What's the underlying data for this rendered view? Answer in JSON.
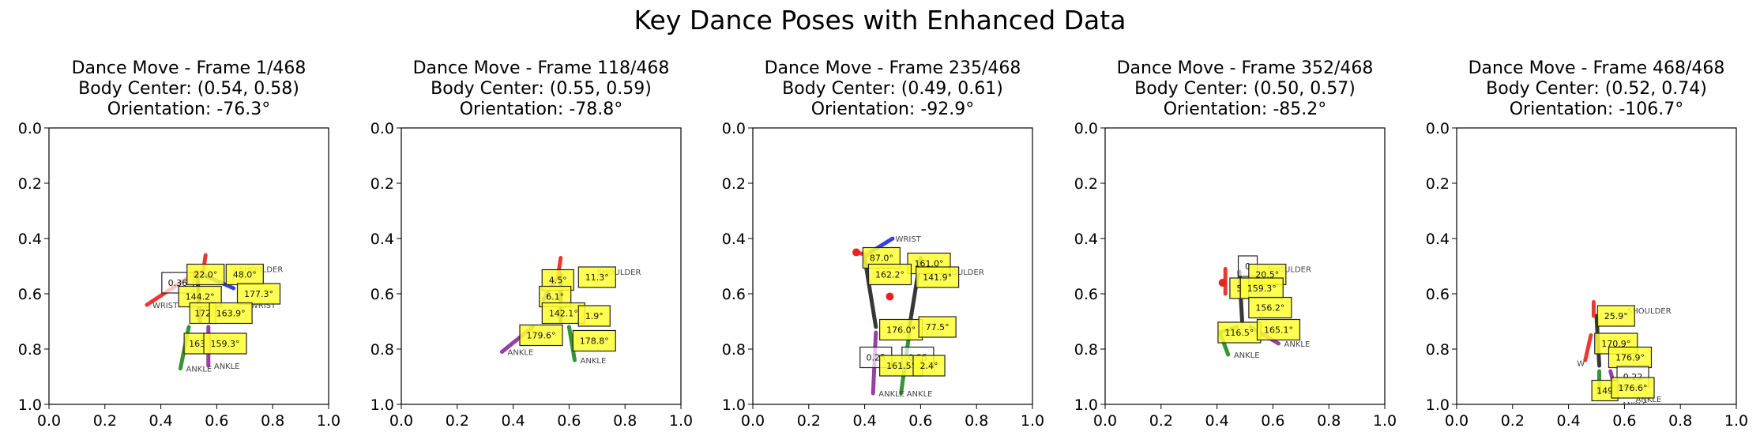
{
  "suptitle": "Key Dance Poses with Enhanced Data",
  "colors": {
    "spine": "#222222",
    "left_arm": "#e8231f",
    "right_arm": "#1f2fd6",
    "left_leg": "#1e8a1e",
    "right_leg": "#8e2a9e",
    "joint_label_box": "#ffff33",
    "head": "#e8231f"
  },
  "chart_data": [
    {
      "type": "scatter",
      "title_lines": [
        "Dance Move - Frame 1/468",
        "Body Center: (0.54, 0.58)",
        "Orientation: -76.3°"
      ],
      "xlim": [
        0,
        1
      ],
      "ylim": [
        1,
        0
      ],
      "xticks": [
        "0.0",
        "0.2",
        "0.4",
        "0.6",
        "0.8",
        "1.0"
      ],
      "yticks": [
        "0.0",
        "0.2",
        "0.4",
        "0.6",
        "0.8",
        "1.0"
      ],
      "segments": [
        {
          "part": "spine",
          "x1": 0.53,
          "y1": 0.52,
          "x2": 0.54,
          "y2": 0.7
        },
        {
          "part": "left_arm",
          "x1": 0.53,
          "y1": 0.52,
          "x2": 0.35,
          "y2": 0.64
        },
        {
          "part": "left_arm",
          "x1": 0.55,
          "y1": 0.53,
          "x2": 0.56,
          "y2": 0.46
        },
        {
          "part": "right_arm",
          "x1": 0.55,
          "y1": 0.53,
          "x2": 0.66,
          "y2": 0.58
        },
        {
          "part": "left_leg",
          "x1": 0.5,
          "y1": 0.72,
          "x2": 0.47,
          "y2": 0.87
        },
        {
          "part": "right_leg",
          "x1": 0.57,
          "y1": 0.72,
          "x2": 0.57,
          "y2": 0.86
        }
      ],
      "joint_labels": [
        {
          "text": "WRIST",
          "x": 0.37,
          "y": 0.64
        },
        {
          "text": "SHOULDER",
          "x": 0.68,
          "y": 0.51
        },
        {
          "text": "WRIST",
          "x": 0.72,
          "y": 0.64
        },
        {
          "text": "ANKLE",
          "x": 0.49,
          "y": 0.87
        },
        {
          "text": "ANKLE",
          "x": 0.59,
          "y": 0.86
        }
      ],
      "value_boxes": [
        {
          "text": "0.36",
          "x": 0.46,
          "y": 0.56,
          "filled": false
        },
        {
          "text": "22.0°",
          "x": 0.56,
          "y": 0.53,
          "filled": true
        },
        {
          "text": "48.0°",
          "x": 0.7,
          "y": 0.53,
          "filled": true
        },
        {
          "text": "144.2°",
          "x": 0.54,
          "y": 0.61,
          "filled": true
        },
        {
          "text": "177.3°",
          "x": 0.75,
          "y": 0.6,
          "filled": true
        },
        {
          "text": "172",
          "x": 0.55,
          "y": 0.67,
          "filled": true
        },
        {
          "text": "163.9°",
          "x": 0.65,
          "y": 0.67,
          "filled": true
        },
        {
          "text": "163",
          "x": 0.53,
          "y": 0.78,
          "filled": true
        },
        {
          "text": "159.3°",
          "x": 0.63,
          "y": 0.78,
          "filled": true
        }
      ]
    },
    {
      "type": "scatter",
      "title_lines": [
        "Dance Move - Frame 118/468",
        "Body Center: (0.55, 0.59)",
        "Orientation: -78.8°"
      ],
      "xlim": [
        0,
        1
      ],
      "ylim": [
        1,
        0
      ],
      "xticks": [
        "0.0",
        "0.2",
        "0.4",
        "0.6",
        "0.8",
        "1.0"
      ],
      "yticks": [
        "0.0",
        "0.2",
        "0.4",
        "0.6",
        "0.8",
        "1.0"
      ],
      "segments": [
        {
          "part": "spine",
          "x1": 0.57,
          "y1": 0.53,
          "x2": 0.57,
          "y2": 0.7
        },
        {
          "part": "left_arm",
          "x1": 0.56,
          "y1": 0.54,
          "x2": 0.57,
          "y2": 0.47
        },
        {
          "part": "right_arm",
          "x1": 0.55,
          "y1": 0.55,
          "x2": 0.51,
          "y2": 0.62
        },
        {
          "part": "right_leg",
          "x1": 0.47,
          "y1": 0.72,
          "x2": 0.36,
          "y2": 0.81
        },
        {
          "part": "left_leg",
          "x1": 0.6,
          "y1": 0.72,
          "x2": 0.62,
          "y2": 0.84
        }
      ],
      "joint_labels": [
        {
          "text": "SHOULDER",
          "x": 0.7,
          "y": 0.52
        },
        {
          "text": "ANKLE",
          "x": 0.38,
          "y": 0.81
        },
        {
          "text": "ANKLE",
          "x": 0.64,
          "y": 0.84
        }
      ],
      "value_boxes": [
        {
          "text": "4.5°",
          "x": 0.56,
          "y": 0.55,
          "filled": true
        },
        {
          "text": "11.3°",
          "x": 0.7,
          "y": 0.54,
          "filled": true
        },
        {
          "text": "6.1°",
          "x": 0.55,
          "y": 0.61,
          "filled": true
        },
        {
          "text": "142.1°",
          "x": 0.58,
          "y": 0.67,
          "filled": true
        },
        {
          "text": "1.9°",
          "x": 0.69,
          "y": 0.68,
          "filled": true
        },
        {
          "text": "179.6°",
          "x": 0.5,
          "y": 0.75,
          "filled": true
        },
        {
          "text": "178.8°",
          "x": 0.69,
          "y": 0.77,
          "filled": true
        }
      ]
    },
    {
      "type": "scatter",
      "title_lines": [
        "Dance Move - Frame 235/468",
        "Body Center: (0.49, 0.61)",
        "Orientation: -92.9°"
      ],
      "xlim": [
        0,
        1
      ],
      "ylim": [
        1,
        0
      ],
      "xticks": [
        "0.0",
        "0.2",
        "0.4",
        "0.6",
        "0.8",
        "1.0"
      ],
      "yticks": [
        "0.0",
        "0.2",
        "0.4",
        "0.6",
        "0.8",
        "1.0"
      ],
      "segments": [
        {
          "part": "spine",
          "x1": 0.4,
          "y1": 0.47,
          "x2": 0.44,
          "y2": 0.72
        },
        {
          "part": "spine",
          "x1": 0.6,
          "y1": 0.47,
          "x2": 0.56,
          "y2": 0.72
        },
        {
          "part": "right_arm",
          "x1": 0.42,
          "y1": 0.45,
          "x2": 0.5,
          "y2": 0.4
        },
        {
          "part": "left_arm",
          "x1": 0.37,
          "y1": 0.45,
          "x2": 0.41,
          "y2": 0.46
        },
        {
          "part": "right_leg",
          "x1": 0.44,
          "y1": 0.74,
          "x2": 0.43,
          "y2": 0.96
        },
        {
          "part": "left_leg",
          "x1": 0.56,
          "y1": 0.74,
          "x2": 0.53,
          "y2": 0.96
        }
      ],
      "points": [
        {
          "part": "head",
          "x": 0.37,
          "y": 0.45
        },
        {
          "part": "head",
          "x": 0.49,
          "y": 0.61
        }
      ],
      "joint_labels": [
        {
          "text": "WRIST",
          "x": 0.51,
          "y": 0.4
        },
        {
          "text": "SHOULDER",
          "x": 0.67,
          "y": 0.52
        },
        {
          "text": "ANKLE",
          "x": 0.45,
          "y": 0.96
        },
        {
          "text": "ANKLE",
          "x": 0.55,
          "y": 0.96
        }
      ],
      "value_boxes": [
        {
          "text": "87.0°",
          "x": 0.46,
          "y": 0.47,
          "filled": true
        },
        {
          "text": "161.0°",
          "x": 0.63,
          "y": 0.49,
          "filled": true
        },
        {
          "text": "162.2°",
          "x": 0.49,
          "y": 0.53,
          "filled": true
        },
        {
          "text": "141.9°",
          "x": 0.66,
          "y": 0.54,
          "filled": true
        },
        {
          "text": "176.0°",
          "x": 0.53,
          "y": 0.73,
          "filled": true
        },
        {
          "text": "77.5°",
          "x": 0.66,
          "y": 0.72,
          "filled": true
        },
        {
          "text": "0.25",
          "x": 0.44,
          "y": 0.83,
          "filled": false
        },
        {
          "text": "0.25",
          "x": 0.59,
          "y": 0.83,
          "filled": false
        },
        {
          "text": "161.5°",
          "x": 0.53,
          "y": 0.86,
          "filled": true
        },
        {
          "text": "2.4°",
          "x": 0.63,
          "y": 0.86,
          "filled": true
        }
      ]
    },
    {
      "type": "scatter",
      "title_lines": [
        "Dance Move - Frame 352/468",
        "Body Center: (0.50, 0.57)",
        "Orientation: -85.2°"
      ],
      "xlim": [
        0,
        1
      ],
      "ylim": [
        1,
        0
      ],
      "xticks": [
        "0.0",
        "0.2",
        "0.4",
        "0.6",
        "0.8",
        "1.0"
      ],
      "yticks": [
        "0.0",
        "0.2",
        "0.4",
        "0.6",
        "0.8",
        "1.0"
      ],
      "segments": [
        {
          "part": "spine",
          "x1": 0.48,
          "y1": 0.52,
          "x2": 0.49,
          "y2": 0.7
        },
        {
          "part": "left_arm",
          "x1": 0.43,
          "y1": 0.51,
          "x2": 0.43,
          "y2": 0.6
        },
        {
          "part": "left_leg",
          "x1": 0.47,
          "y1": 0.72,
          "x2": 0.41,
          "y2": 0.74
        },
        {
          "part": "left_leg",
          "x1": 0.41,
          "y1": 0.74,
          "x2": 0.44,
          "y2": 0.82
        },
        {
          "part": "right_leg",
          "x1": 0.52,
          "y1": 0.72,
          "x2": 0.62,
          "y2": 0.78
        }
      ],
      "points": [
        {
          "part": "head",
          "x": 0.42,
          "y": 0.56
        }
      ],
      "joint_labels": [
        {
          "text": "SHOULDER",
          "x": 0.58,
          "y": 0.51
        },
        {
          "text": "ANKLE",
          "x": 0.46,
          "y": 0.82
        },
        {
          "text": "ANKLE",
          "x": 0.64,
          "y": 0.78
        }
      ],
      "value_boxes": [
        {
          "text": "0",
          "x": 0.51,
          "y": 0.5,
          "filled": false
        },
        {
          "text": "20.5°",
          "x": 0.58,
          "y": 0.53,
          "filled": true
        },
        {
          "text": "5",
          "x": 0.48,
          "y": 0.58,
          "filled": true
        },
        {
          "text": "159.3°",
          "x": 0.56,
          "y": 0.58,
          "filled": true
        },
        {
          "text": "156.2°",
          "x": 0.59,
          "y": 0.65,
          "filled": true
        },
        {
          "text": "116.5°",
          "x": 0.48,
          "y": 0.74,
          "filled": true
        },
        {
          "text": "165.1°",
          "x": 0.62,
          "y": 0.73,
          "filled": true
        }
      ]
    },
    {
      "type": "scatter",
      "title_lines": [
        "Dance Move - Frame 468/468",
        "Body Center: (0.52, 0.74)",
        "Orientation: -106.7°"
      ],
      "xlim": [
        0,
        1
      ],
      "ylim": [
        1,
        0
      ],
      "xticks": [
        "0.0",
        "0.2",
        "0.4",
        "0.6",
        "0.8",
        "1.0"
      ],
      "yticks": [
        "0.0",
        "0.2",
        "0.4",
        "0.6",
        "0.8",
        "1.0"
      ],
      "segments": [
        {
          "part": "spine",
          "x1": 0.5,
          "y1": 0.68,
          "x2": 0.51,
          "y2": 0.86
        },
        {
          "part": "left_arm",
          "x1": 0.49,
          "y1": 0.68,
          "x2": 0.49,
          "y2": 0.63
        },
        {
          "part": "left_arm",
          "x1": 0.48,
          "y1": 0.75,
          "x2": 0.46,
          "y2": 0.84
        },
        {
          "part": "left_leg",
          "x1": 0.51,
          "y1": 0.88,
          "x2": 0.51,
          "y2": 0.96
        },
        {
          "part": "right_leg",
          "x1": 0.55,
          "y1": 0.88,
          "x2": 0.57,
          "y2": 0.96
        }
      ],
      "joint_labels": [
        {
          "text": "SHOULDER",
          "x": 0.61,
          "y": 0.66
        },
        {
          "text": "ANKLE",
          "x": 0.59,
          "y": 1.0
        },
        {
          "text": "ANKLE",
          "x": 0.64,
          "y": 0.98
        },
        {
          "text": "W",
          "x": 0.43,
          "y": 0.85
        }
      ],
      "value_boxes": [
        {
          "text": "25.9°",
          "x": 0.57,
          "y": 0.68,
          "filled": true
        },
        {
          "text": "170.9°",
          "x": 0.57,
          "y": 0.78,
          "filled": true
        },
        {
          "text": "176.9°",
          "x": 0.62,
          "y": 0.83,
          "filled": true
        },
        {
          "text": "0.22",
          "x": 0.63,
          "y": 0.9,
          "filled": false
        },
        {
          "text": "149",
          "x": 0.53,
          "y": 0.95,
          "filled": true
        },
        {
          "text": "176.6°",
          "x": 0.63,
          "y": 0.94,
          "filled": true
        }
      ]
    }
  ]
}
